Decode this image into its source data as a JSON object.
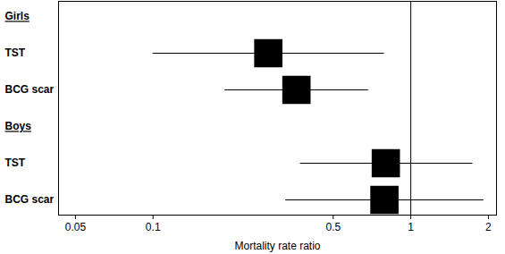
{
  "chart_data": {
    "type": "forest",
    "xlabel": "Mortality rate ratio",
    "log": "x",
    "xlim": [
      0.043,
      2.15
    ],
    "xticks": [
      0.05,
      0.1,
      0.5,
      1,
      2
    ],
    "reference_line": 1,
    "color": "#000000",
    "marker": "square",
    "groups": [
      {
        "name": "Girls",
        "rows": [
          {
            "label": "TST",
            "estimate": 0.28,
            "lower": 0.1,
            "upper": 0.79
          },
          {
            "label": "BCG scar",
            "estimate": 0.36,
            "lower": 0.19,
            "upper": 0.685
          }
        ]
      },
      {
        "name": "Boys",
        "rows": [
          {
            "label": "TST",
            "estimate": 0.8,
            "lower": 0.373,
            "upper": 1.74
          },
          {
            "label": "BCG scar",
            "estimate": 0.79,
            "lower": 0.327,
            "upper": 1.92
          }
        ]
      }
    ]
  }
}
